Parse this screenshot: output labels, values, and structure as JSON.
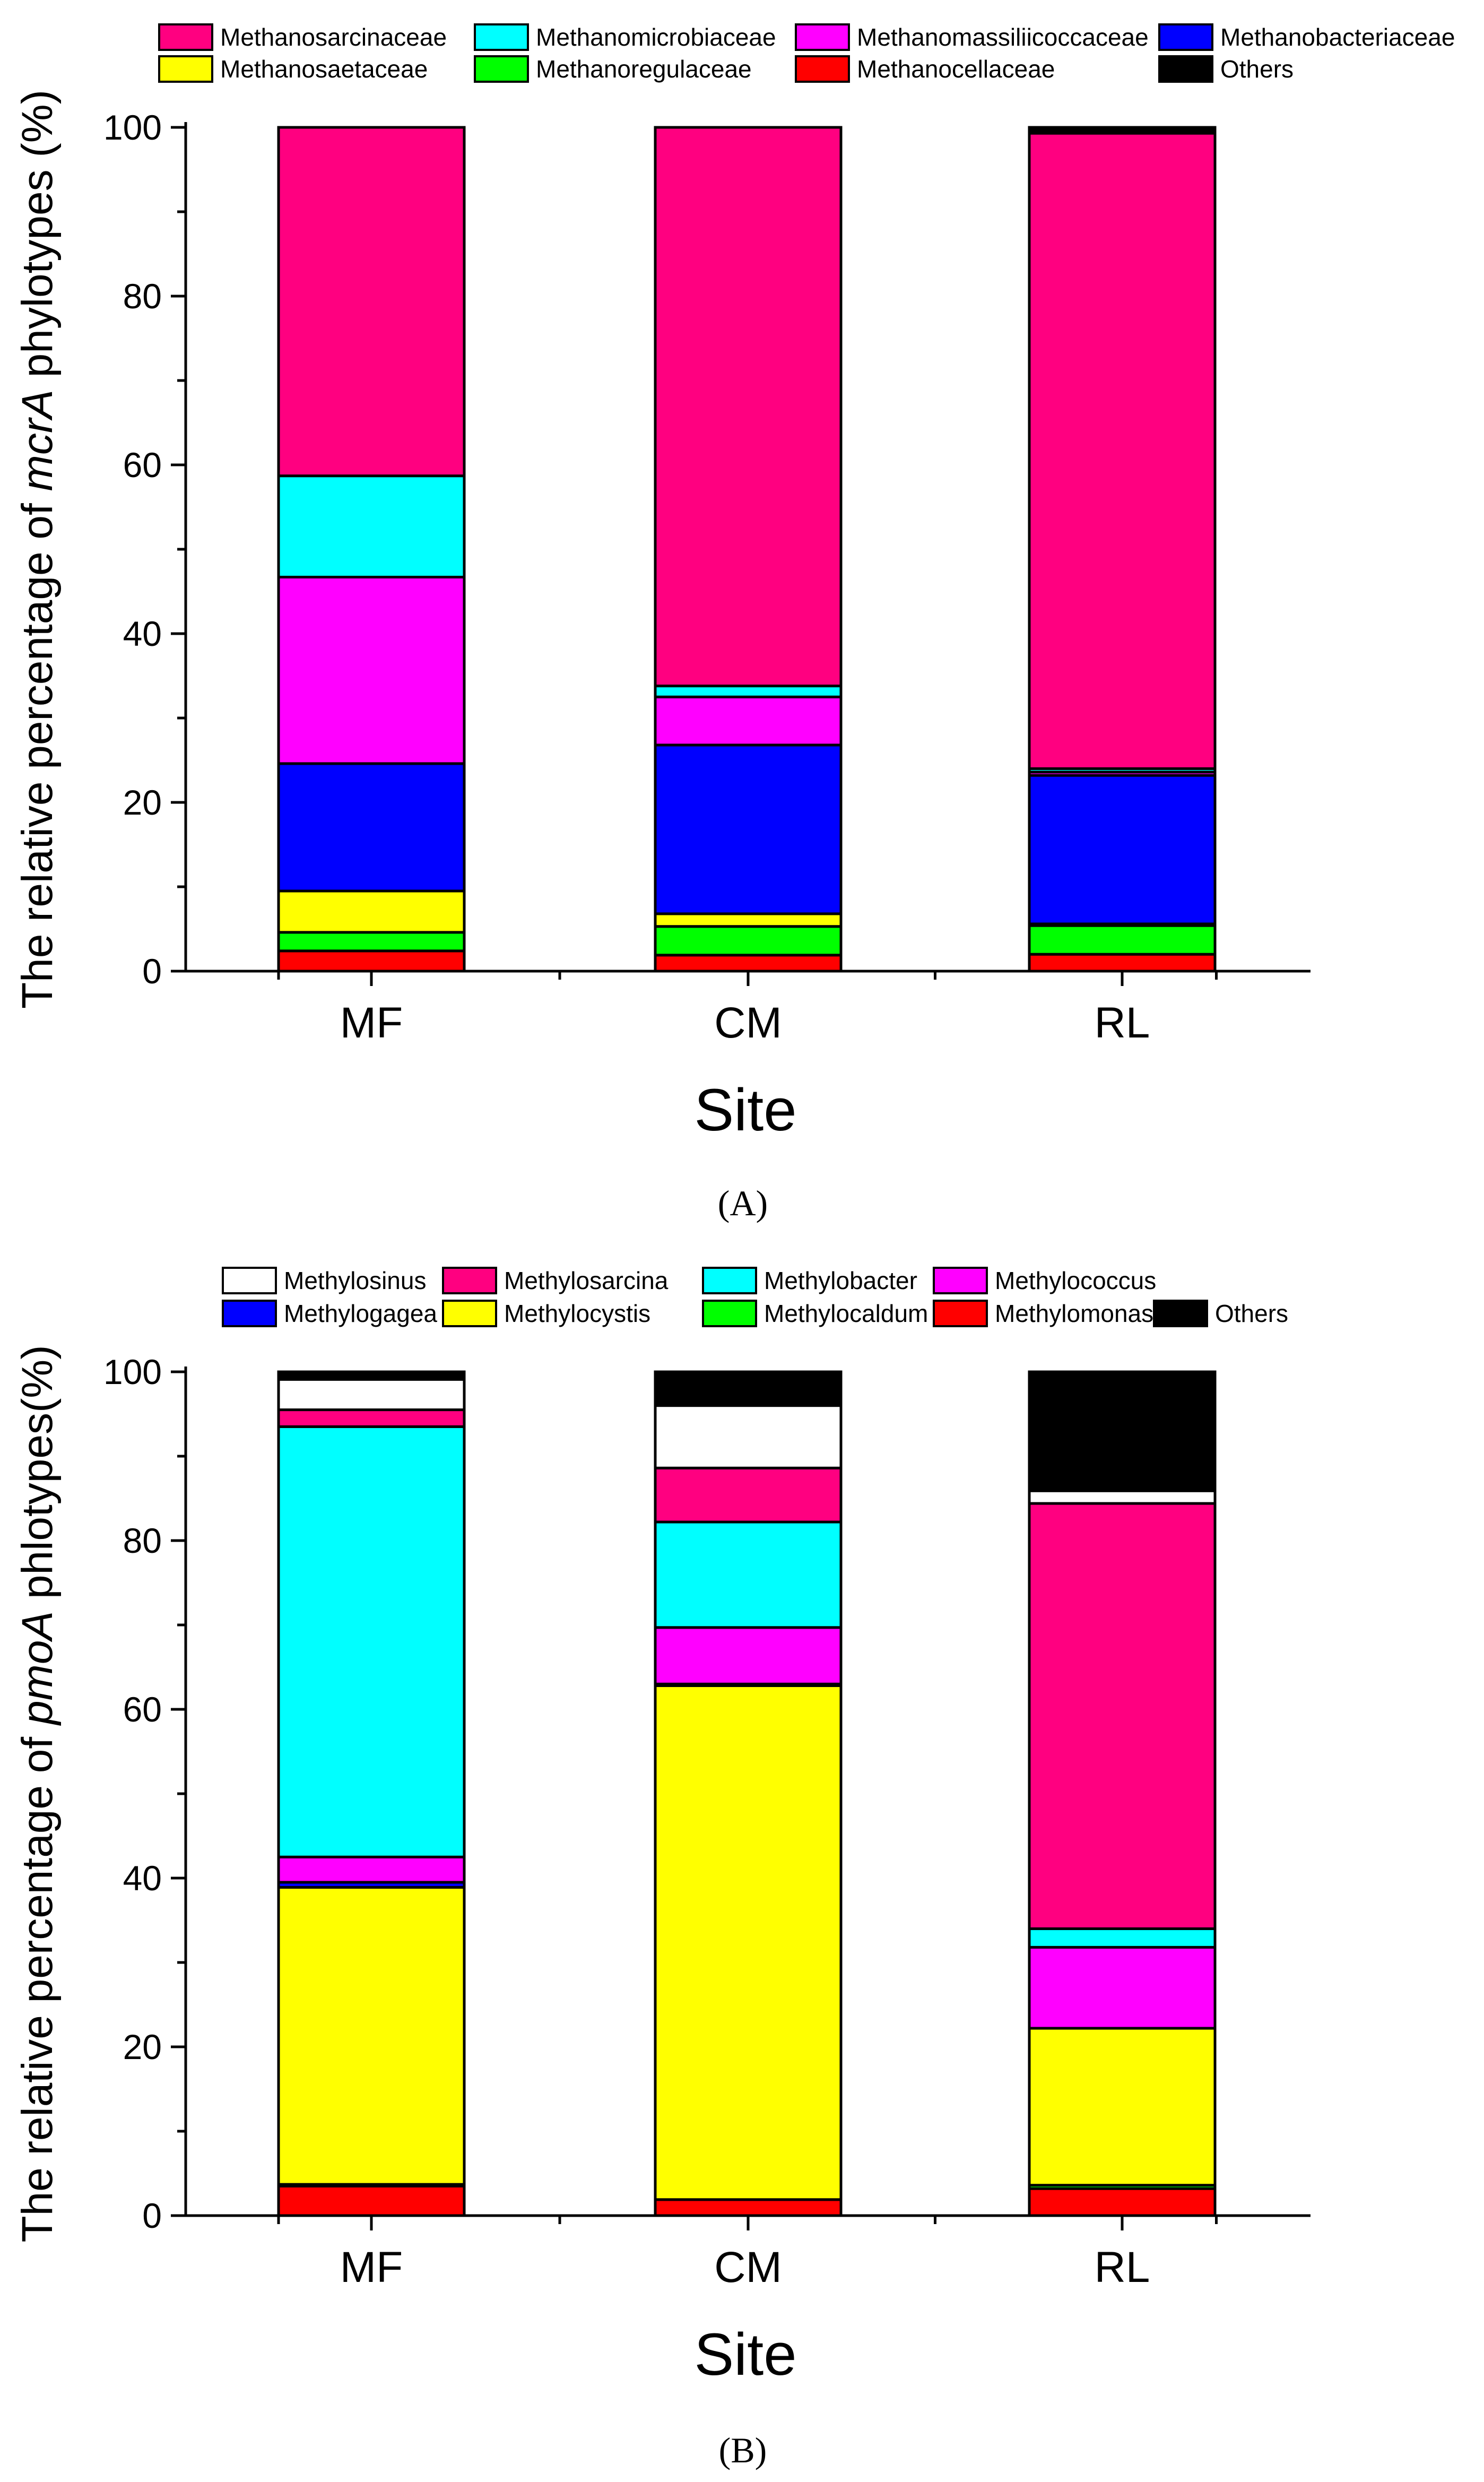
{
  "panels": [
    {
      "panel_label_display": "(A)",
      "legend_colors": [
        "#FF0080",
        "#00FFFF",
        "#FF00FF",
        "#0000FF",
        "#FFFF00",
        "#00FF00",
        "#FF0000",
        "#000000"
      ]
    },
    {
      "panel_label_display": "(B)",
      "legend_colors": [
        "#FFFFFF",
        "#FF0080",
        "#00FFFF",
        "#FF00FF",
        "#0000FF",
        "#FFFF00",
        "#00FF00",
        "#FF0000",
        "#000000"
      ]
    }
  ],
  "chart_data": [
    {
      "type": "bar",
      "stacked": true,
      "panel_label": "A",
      "xlabel": "Site",
      "ylabel": "The relative percentage of mcrA phylotypes (%)",
      "ylabel_parts": [
        "The relative percentage of ",
        "mcrA",
        " phylotypes (%)"
      ],
      "ylim": [
        0,
        100
      ],
      "yticks": [
        "0",
        "20",
        "40",
        "60",
        "80",
        "100"
      ],
      "categories": [
        "MF",
        "CM",
        "RL"
      ],
      "legend_placement": "top",
      "series": [
        {
          "name": "Methanocellaceae",
          "color": "#FF0000",
          "values": [
            2.4,
            1.9,
            2.0
          ]
        },
        {
          "name": "Methanoregulaceae",
          "color": "#00FF00",
          "values": [
            2.2,
            3.4,
            3.4
          ]
        },
        {
          "name": "Methanosaetaceae",
          "color": "#FFFF00",
          "values": [
            4.9,
            1.5,
            0.2
          ]
        },
        {
          "name": "Methanobacteriaceae",
          "color": "#0000FF",
          "values": [
            15.1,
            20.0,
            17.6
          ]
        },
        {
          "name": "Methanomassiliicoccaceae",
          "color": "#FF00FF",
          "values": [
            22.1,
            5.7,
            0.4
          ]
        },
        {
          "name": "Methanomicrobiaceae",
          "color": "#00FFFF",
          "values": [
            12.0,
            1.3,
            0.4
          ]
        },
        {
          "name": "Methanosarcinaceae",
          "color": "#FF0080",
          "values": [
            41.3,
            66.2,
            75.3
          ]
        },
        {
          "name": "Others",
          "color": "#000000",
          "values": [
            0.0,
            0.0,
            0.7
          ]
        }
      ],
      "legend_order": [
        "Methanosarcinaceae",
        "Methanomicrobiaceae",
        "Methanomassiliicoccaceae",
        "Methanobacteriaceae",
        "Methanosaetaceae",
        "Methanoregulaceae",
        "Methanocellaceae",
        "Others"
      ]
    },
    {
      "type": "bar",
      "stacked": true,
      "panel_label": "B",
      "xlabel": "Site",
      "ylabel": "The relative percentage of pmoA phlotypes(%)",
      "ylabel_parts": [
        "The relative percentage of ",
        "pmoA",
        " phlotypes(%)"
      ],
      "ylim": [
        0,
        100
      ],
      "yticks": [
        "0",
        "20",
        "40",
        "60",
        "80",
        "100"
      ],
      "categories": [
        "MF",
        "CM",
        "RL"
      ],
      "legend_placement": "top",
      "series": [
        {
          "name": "Methylomonas",
          "color": "#FF0000",
          "values": [
            3.5,
            1.9,
            3.2
          ]
        },
        {
          "name": "Methylocaldum",
          "color": "#00FF00",
          "values": [
            0.2,
            0.0,
            0.4
          ]
        },
        {
          "name": "Methylocystis",
          "color": "#FFFF00",
          "values": [
            35.2,
            60.9,
            18.6
          ]
        },
        {
          "name": "Methylogagea",
          "color": "#0000FF",
          "values": [
            0.6,
            0.2,
            0.0
          ]
        },
        {
          "name": "Methylococcus",
          "color": "#FF00FF",
          "values": [
            3.0,
            6.7,
            9.6
          ]
        },
        {
          "name": "Methylobacter",
          "color": "#00FFFF",
          "values": [
            51.0,
            12.5,
            2.2
          ]
        },
        {
          "name": "Methylosarcina",
          "color": "#FF0080",
          "values": [
            2.0,
            6.4,
            50.4
          ]
        },
        {
          "name": "Methylosinus",
          "color": "#FFFFFF",
          "values": [
            3.6,
            7.4,
            1.5
          ]
        },
        {
          "name": "Others",
          "color": "#000000",
          "values": [
            0.9,
            4.0,
            14.1
          ]
        }
      ],
      "legend_order": [
        "Methylosinus",
        "Methylosarcina",
        "Methylobacter",
        "Methylococcus",
        "Methylogagea",
        "Methylocystis",
        "Methylocaldum",
        "Methylomonas",
        "Others"
      ]
    }
  ]
}
